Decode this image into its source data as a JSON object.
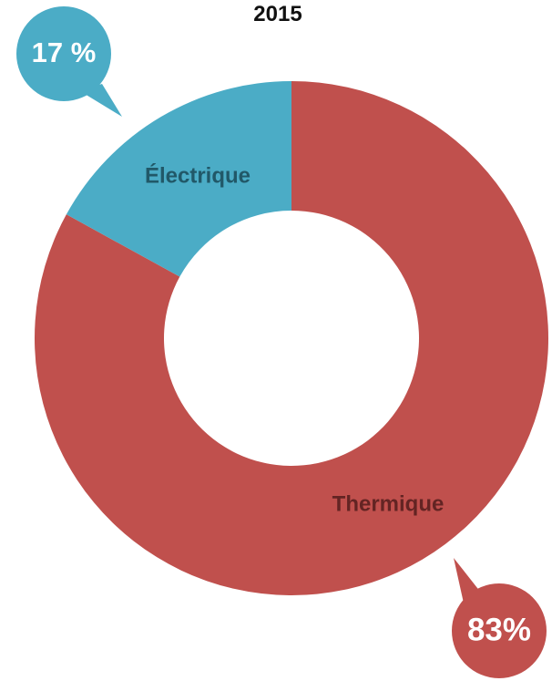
{
  "chart_data": {
    "type": "pie",
    "title": "2015",
    "categories": [
      "Électrique",
      "Thermique"
    ],
    "values": [
      17,
      83
    ],
    "value_labels": [
      "17 %",
      "83%"
    ],
    "colors": [
      "#4BACC6",
      "#C0504D"
    ],
    "label_colors": [
      "#215868",
      "#632423"
    ],
    "donut": true
  }
}
